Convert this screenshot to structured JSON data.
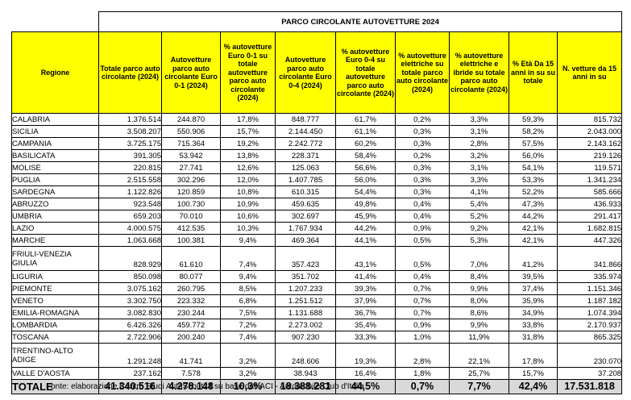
{
  "table": {
    "title": "PARCO CIRCOLANTE AUTOVETTURE 2024",
    "headers": [
      "Regione",
      "Totale parco auto circolante (2024)",
      "Autovetture parco auto circolante Euro 0-1 (2024)",
      "% autovetture Euro 0-1 su totale autovetture parco auto circolante (2024)",
      "Autovetture parco auto circolante Euro 0-4 (2024)",
      "% autovetture Euro 0-4 su totale autovetture parco auto circolante (2024)",
      "% autovetture elettriche su totale parco auto circolante (2024)",
      "% autovetture elettriche e ibride su totale parco auto circolante (2024)",
      "% Età Da 15 anni in su su totale",
      "N. vetture da 15 anni in su"
    ],
    "rows": [
      [
        "CALABRIA",
        "1.376.514",
        "244.870",
        "17,8%",
        "848.777",
        "61,7%",
        "0,2%",
        "3,3%",
        "59,3%",
        "815.732"
      ],
      [
        "SICILIA",
        "3.508.207",
        "550.906",
        "15,7%",
        "2.144.450",
        "61,1%",
        "0,3%",
        "3,1%",
        "58,2%",
        "2.043.000"
      ],
      [
        "CAMPANIA",
        "3.725.175",
        "715.364",
        "19,2%",
        "2.242.772",
        "60,2%",
        "0,3%",
        "2,8%",
        "57,5%",
        "2.143.162"
      ],
      [
        "BASILICATA",
        "391.305",
        "53.942",
        "13,8%",
        "228.371",
        "58,4%",
        "0,2%",
        "3,2%",
        "56,0%",
        "219.126"
      ],
      [
        "MOLISE",
        "220.815",
        "27.741",
        "12,6%",
        "125.063",
        "56,6%",
        "0,3%",
        "3,1%",
        "54,1%",
        "119.571"
      ],
      [
        "PUGLIA",
        "2.515.558",
        "302.296",
        "12,0%",
        "1.407.785",
        "56,0%",
        "0,3%",
        "3,3%",
        "53,3%",
        "1.341.234"
      ],
      [
        "SARDEGNA",
        "1.122.826",
        "120.859",
        "10,8%",
        "610.315",
        "54,4%",
        "0,3%",
        "4,1%",
        "52,2%",
        "585.666"
      ],
      [
        "ABRUZZO",
        "923.548",
        "100.730",
        "10,9%",
        "459.635",
        "49,8%",
        "0,4%",
        "5,4%",
        "47,3%",
        "436.933"
      ],
      [
        "UMBRIA",
        "659.203",
        "70.010",
        "10,6%",
        "302.697",
        "45,9%",
        "0,4%",
        "5,2%",
        "44,2%",
        "291.417"
      ],
      [
        "LAZIO",
        "4.000.575",
        "412.535",
        "10,3%",
        "1.767.934",
        "44,2%",
        "0,9%",
        "9,2%",
        "42,1%",
        "1.682.815"
      ],
      [
        "MARCHE",
        "1.063.668",
        "100.381",
        "9,4%",
        "469.364",
        "44,1%",
        "0,5%",
        "5,3%",
        "42,1%",
        "447.326"
      ],
      [
        "FRIULI-VENEZIA GIULIA",
        "828.929",
        "61.610",
        "7,4%",
        "357.423",
        "43,1%",
        "0,5%",
        "7,0%",
        "41,2%",
        "341.866"
      ],
      [
        "LIGURIA",
        "850.098",
        "80.077",
        "9,4%",
        "351.702",
        "41,4%",
        "0,4%",
        "8,4%",
        "39,5%",
        "335.974"
      ],
      [
        "PIEMONTE",
        "3.075.162",
        "260.795",
        "8,5%",
        "1.207.233",
        "39,3%",
        "0,7%",
        "9,9%",
        "37,4%",
        "1.151.346"
      ],
      [
        "VENETO",
        "3.302.750",
        "223.332",
        "6,8%",
        "1.251.512",
        "37,9%",
        "0,7%",
        "8,0%",
        "35,9%",
        "1.187.182"
      ],
      [
        "EMILIA-ROMAGNA",
        "3.082.830",
        "230.244",
        "7,5%",
        "1.131.688",
        "36,7%",
        "0,7%",
        "8,6%",
        "34,9%",
        "1.074.394"
      ],
      [
        "LOMBARDIA",
        "6.426.326",
        "459.772",
        "7,2%",
        "2.273.002",
        "35,4%",
        "0,9%",
        "9,9%",
        "33,8%",
        "2.170.937"
      ],
      [
        "TOSCANA",
        "2.722.906",
        "200.240",
        "7,4%",
        "907.230",
        "33,3%",
        "1,0%",
        "11,9%",
        "31,8%",
        "865.325"
      ],
      [
        "TRENTINO-ALTO ADIGE",
        "1.291.248",
        "41.741",
        "3,2%",
        "248.606",
        "19,3%",
        "2,8%",
        "22,1%",
        "17,8%",
        "230.070"
      ],
      [
        "VALLE D'AOSTA",
        "237.162",
        "7.578",
        "3,2%",
        "38.943",
        "16,4%",
        "1,8%",
        "25,7%",
        "15,7%",
        "37.208"
      ]
    ],
    "total": [
      "TOTALE",
      "41.340.516",
      "4.278.148",
      "10,3%",
      "18.388.281",
      "44,5%",
      "0,7%",
      "7,7%",
      "42,4%",
      "17.531.818"
    ]
  },
  "source": "Fonte: elaborazione Centro Studi AutoScout24 su base dati ACI - Automobile Club d'Italia",
  "colors": {
    "header_fill": "#ffff00",
    "total_fill": "#d9d9d9"
  }
}
